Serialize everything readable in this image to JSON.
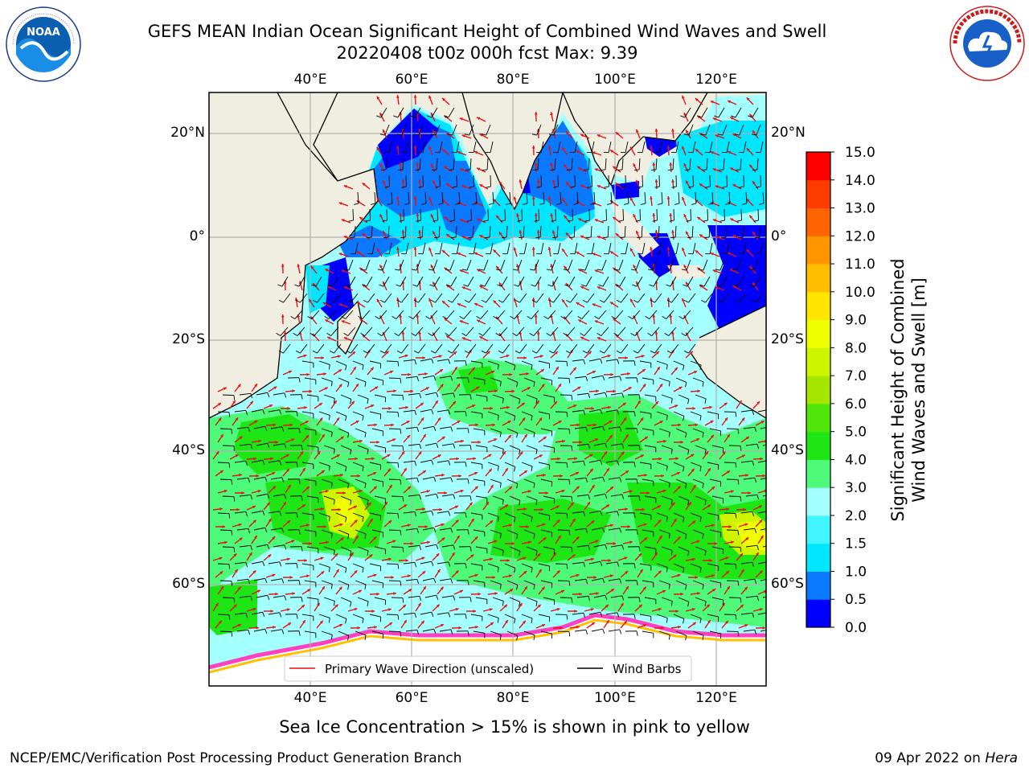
{
  "header": {
    "title_line1": "GEFS MEAN Indian Ocean Significant Height of Combined Wind Waves and Swell",
    "title_line2": "20220408 t00z 000h fcst   Max: 9.39"
  },
  "logos": {
    "noaa": {
      "center_text": "NOAA",
      "ring_text": "NATIONAL OCEANIC AND ATMOSPHERIC ADMINISTRATION · U.S. DEPARTMENT OF COMMERCE"
    },
    "nws": {
      "ring_text": "NATIONAL WEATHER SERVICE"
    }
  },
  "axes": {
    "longitude_ticks": [
      "40°E",
      "60°E",
      "80°E",
      "100°E",
      "120°E"
    ],
    "latitude_ticks_left": [
      "20°N",
      "0°",
      "20°S",
      "40°S",
      "60°S"
    ],
    "latitude_ticks_right": [
      "20°N",
      "0°",
      "20°S",
      "40°S",
      "60°S"
    ]
  },
  "legend": {
    "wave_label": "Primary Wave Direction (unscaled)",
    "barb_label": "Wind Barbs",
    "wave_color": "#e81010",
    "barb_color": "#000000"
  },
  "colorbar": {
    "label_line1": "Significant Height of Combined",
    "label_line2": "Wind Waves and Swell [m]",
    "tick_labels": [
      "0.0",
      "0.5",
      "1.0",
      "1.5",
      "2.0",
      "3.0",
      "4.0",
      "5.0",
      "6.0",
      "7.0",
      "8.0",
      "9.0",
      "10.0",
      "11.0",
      "12.0",
      "13.0",
      "14.0",
      "15.0"
    ],
    "colors": [
      "#0000ff",
      "#0a78ff",
      "#00e6ff",
      "#40f5ff",
      "#a4ffff",
      "#4dfa7a",
      "#1ee614",
      "#50e60a",
      "#a5e600",
      "#cdf500",
      "#f0ff00",
      "#ffe600",
      "#ffbe00",
      "#ff9600",
      "#ff6400",
      "#ff3c00",
      "#ff0000"
    ]
  },
  "footer": {
    "sea_ice_note": "Sea Ice Concentration > 15% is shown in pink to yellow",
    "credit": "NCEP/EMC/Verification Post Processing Product Generation Branch",
    "date": "09 Apr 2022 on",
    "host": "Hera"
  }
}
